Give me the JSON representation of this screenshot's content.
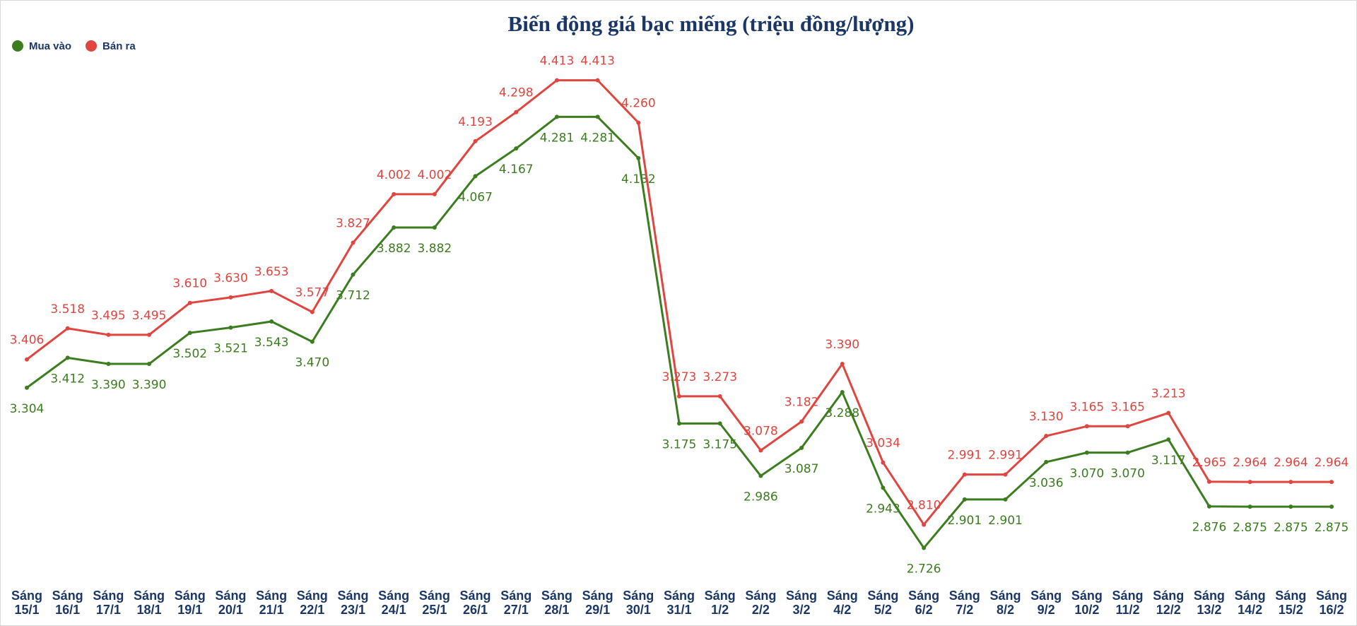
{
  "chart_data": {
    "type": "line",
    "title": "Biến động giá bạc miếng (triệu đồng/lượng)",
    "categories": [
      "Sáng 15/1",
      "Sáng 16/1",
      "Sáng 17/1",
      "Sáng 18/1",
      "Sáng 19/1",
      "Sáng 20/1",
      "Sáng 21/1",
      "Sáng 22/1",
      "Sáng 23/1",
      "Sáng 24/1",
      "Sáng 25/1",
      "Sáng 26/1",
      "Sáng 27/1",
      "Sáng 28/1",
      "Sáng 29/1",
      "Sáng 30/1",
      "Sáng 31/1",
      "Sáng 1/2",
      "Sáng 2/2",
      "Sáng 3/2",
      "Sáng 4/2",
      "Sáng 5/2",
      "Sáng 6/2",
      "Sáng 7/2",
      "Sáng 8/2",
      "Sáng 9/2",
      "Sáng 10/2",
      "Sáng 11/2",
      "Sáng 12/2",
      "Sáng 13/2",
      "Sáng 14/2",
      "Sáng 15/2",
      "Sáng 16/2"
    ],
    "series": [
      {
        "name": "Mua vào",
        "color": "#3b7d1f",
        "values": [
          3.304,
          3.412,
          3.39,
          3.39,
          3.502,
          3.521,
          3.543,
          3.47,
          3.712,
          3.882,
          3.882,
          4.067,
          4.167,
          4.281,
          4.281,
          4.132,
          3.175,
          3.175,
          2.986,
          3.087,
          3.288,
          2.943,
          2.726,
          2.901,
          2.901,
          3.036,
          3.07,
          3.07,
          3.117,
          2.876,
          2.875,
          2.875,
          2.875
        ],
        "value_labels": [
          "3.304",
          "3.412",
          "3.390",
          "3.390",
          "3.502",
          "3.521",
          "3.543",
          "3.470",
          "3.712",
          "3.882",
          "3.882",
          "4.067",
          "4.167",
          "4.281",
          "4.281",
          "4.132",
          "3.175",
          "3.175",
          "2.986",
          "3.087",
          "3.288",
          "2.943",
          "2.726",
          "2.901",
          "2.901",
          "3.036",
          "3.070",
          "3.070",
          "3.117",
          "2.876",
          "2.875",
          "2.875",
          "2.875"
        ]
      },
      {
        "name": "Bán ra",
        "color": "#e0453f",
        "values": [
          3.406,
          3.518,
          3.495,
          3.495,
          3.61,
          3.63,
          3.653,
          3.577,
          3.827,
          4.002,
          4.002,
          4.193,
          4.298,
          4.413,
          4.413,
          4.26,
          3.273,
          3.273,
          3.078,
          3.182,
          3.39,
          3.034,
          2.81,
          2.991,
          2.991,
          3.13,
          3.165,
          3.165,
          3.213,
          2.965,
          2.964,
          2.964,
          2.964
        ],
        "value_labels": [
          "3.406",
          "3.518",
          "3.495",
          "3.495",
          "3.610",
          "3.630",
          "3.653",
          "3.577",
          "3.827",
          "4.002",
          "4.002",
          "4.193",
          "4.298",
          "4.413",
          "4.413",
          "4.260",
          "3.273",
          "3.273",
          "3.078",
          "3.182",
          "3.390",
          "3.034",
          "2.810",
          "2.991",
          "2.991",
          "3.130",
          "3.165",
          "3.165",
          "3.213",
          "2.965",
          "2.964",
          "2.964",
          "2.964"
        ]
      }
    ],
    "ylim": [
      2.6,
      4.7
    ],
    "legend": "top-left"
  }
}
